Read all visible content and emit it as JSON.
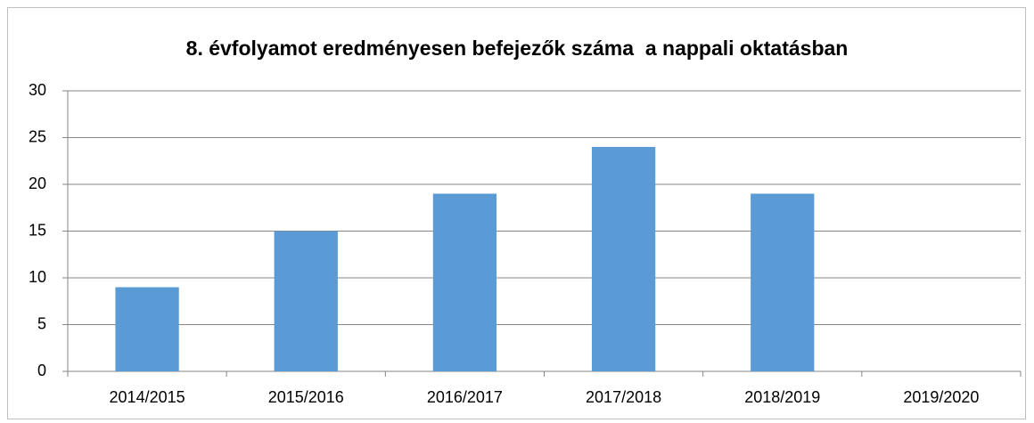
{
  "chart_data": {
    "type": "bar",
    "title": "8. évfolyamot eredményesen befejezők száma  a nappali oktatásban",
    "categories": [
      "2014/2015",
      "2015/2016",
      "2016/2017",
      "2017/2018",
      "2018/2019",
      "2019/2020"
    ],
    "values": [
      9,
      15,
      19,
      24,
      19,
      0
    ],
    "color": "#5b9bd5",
    "ylim": [
      0,
      30
    ],
    "yticks": [
      0,
      5,
      10,
      15,
      20,
      25,
      30
    ],
    "grid": true
  }
}
